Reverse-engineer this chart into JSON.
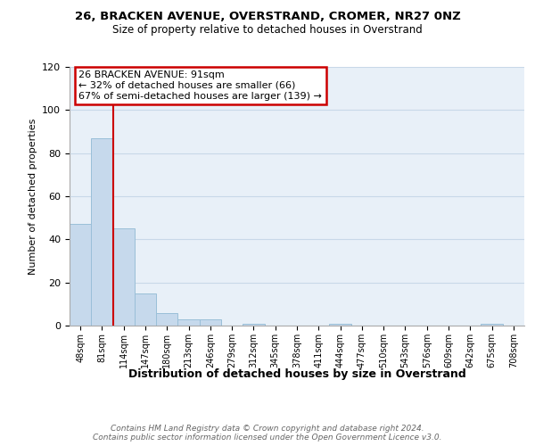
{
  "title1": "26, BRACKEN AVENUE, OVERSTRAND, CROMER, NR27 0NZ",
  "title2": "Size of property relative to detached houses in Overstrand",
  "xlabel": "Distribution of detached houses by size in Overstrand",
  "ylabel": "Number of detached properties",
  "bin_labels": [
    "48sqm",
    "81sqm",
    "114sqm",
    "147sqm",
    "180sqm",
    "213sqm",
    "246sqm",
    "279sqm",
    "312sqm",
    "345sqm",
    "378sqm",
    "411sqm",
    "444sqm",
    "477sqm",
    "510sqm",
    "543sqm",
    "576sqm",
    "609sqm",
    "642sqm",
    "675sqm",
    "708sqm"
  ],
  "bar_heights": [
    47,
    87,
    45,
    15,
    6,
    3,
    3,
    0,
    1,
    0,
    0,
    0,
    1,
    0,
    0,
    0,
    0,
    0,
    0,
    1,
    0
  ],
  "bar_color": "#c6d9ec",
  "bar_edge_color": "#9abfd8",
  "ylim": [
    0,
    120
  ],
  "yticks": [
    0,
    20,
    40,
    60,
    80,
    100,
    120
  ],
  "red_line_x": 1.5,
  "annotation_title": "26 BRACKEN AVENUE: 91sqm",
  "annotation_line1": "← 32% of detached houses are smaller (66)",
  "annotation_line2": "67% of semi-detached houses are larger (139) →",
  "annotation_box_color": "#ffffff",
  "annotation_box_edge": "#cc0000",
  "footer_line1": "Contains HM Land Registry data © Crown copyright and database right 2024.",
  "footer_line2": "Contains public sector information licensed under the Open Government Licence v3.0.",
  "grid_color": "#c8d8e8",
  "bg_color": "#e8f0f8"
}
